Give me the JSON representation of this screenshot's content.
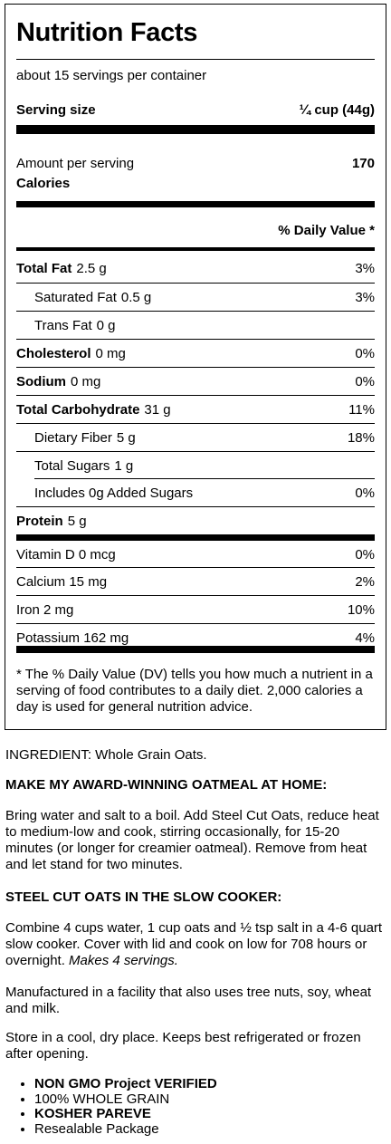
{
  "label": {
    "title": "Nutrition Facts",
    "servings_per_container": "about 15 servings per container",
    "serving_size_label": "Serving size",
    "serving_size_value": "¼ cup (44g)",
    "amount_per_serving": "Amount per serving",
    "calories_label": "Calories",
    "calories_value": "170",
    "daily_value_header": "% Daily Value *",
    "nutrients": [
      {
        "name": "Total Fat",
        "amount": "2.5 g",
        "dv": "3%"
      },
      {
        "name": "Saturated Fat",
        "amount": "0.5 g",
        "dv": "3%"
      },
      {
        "name": "Trans Fat",
        "amount": "0 g",
        "dv": ""
      },
      {
        "name": "Cholesterol",
        "amount": "0 mg",
        "dv": "0%"
      },
      {
        "name": "Sodium",
        "amount": "0 mg",
        "dv": "0%"
      },
      {
        "name": "Total Carbohydrate",
        "amount": "31 g",
        "dv": "11%"
      },
      {
        "name": "Dietary Fiber",
        "amount": "5 g",
        "dv": "18%"
      },
      {
        "name": "Total Sugars",
        "amount": "1 g",
        "dv": ""
      },
      {
        "name": "Includes 0g Added Sugars",
        "amount": "",
        "dv": "0%"
      },
      {
        "name": "Protein",
        "amount": "5 g",
        "dv": ""
      }
    ],
    "vitamins": [
      {
        "name": "Vitamin D 0 mcg",
        "dv": "0%"
      },
      {
        "name": "Calcium 15 mg",
        "dv": "2%"
      },
      {
        "name": "Iron 2 mg",
        "dv": "10%"
      },
      {
        "name": "Potassium 162 mg",
        "dv": "4%"
      }
    ],
    "footnote": "* The % Daily Value (DV) tells you how much a nutrient in a serving of food contributes to a daily diet. 2,000 calories a day is used for general nutrition advice."
  },
  "details": {
    "ingredient": "INGREDIENT: Whole Grain Oats.",
    "oatmeal_heading": "MAKE MY AWARD-WINNING OATMEAL AT HOME:",
    "oatmeal_text": "Bring water and salt to a boil. Add Steel Cut Oats, reduce heat to medium-low and cook, stirring occasionally, for 15-20 minutes (or longer for creamier oatmeal). Remove from heat and let stand for two minutes.",
    "slow_cooker_heading": "STEEL CUT OATS IN THE SLOW COOKER:",
    "slow_cooker_text": "Combine 4 cups water, 1 cup oats and ½ tsp salt in a 4-6 quart slow cooker. Cover with lid and cook on low for 708 hours or overnight.",
    "slow_cooker_makes": "Makes 4 servings.",
    "facility_text": "Manufactured in a facility that also uses tree nuts, soy, wheat and milk.",
    "storage_text": "Store in a cool, dry place. Keeps best refrigerated or frozen after opening.",
    "badges": [
      "NON GMO Project VERIFIED",
      "100% WHOLE GRAIN",
      "KOSHER PAREVE",
      "Resealable Package"
    ]
  }
}
